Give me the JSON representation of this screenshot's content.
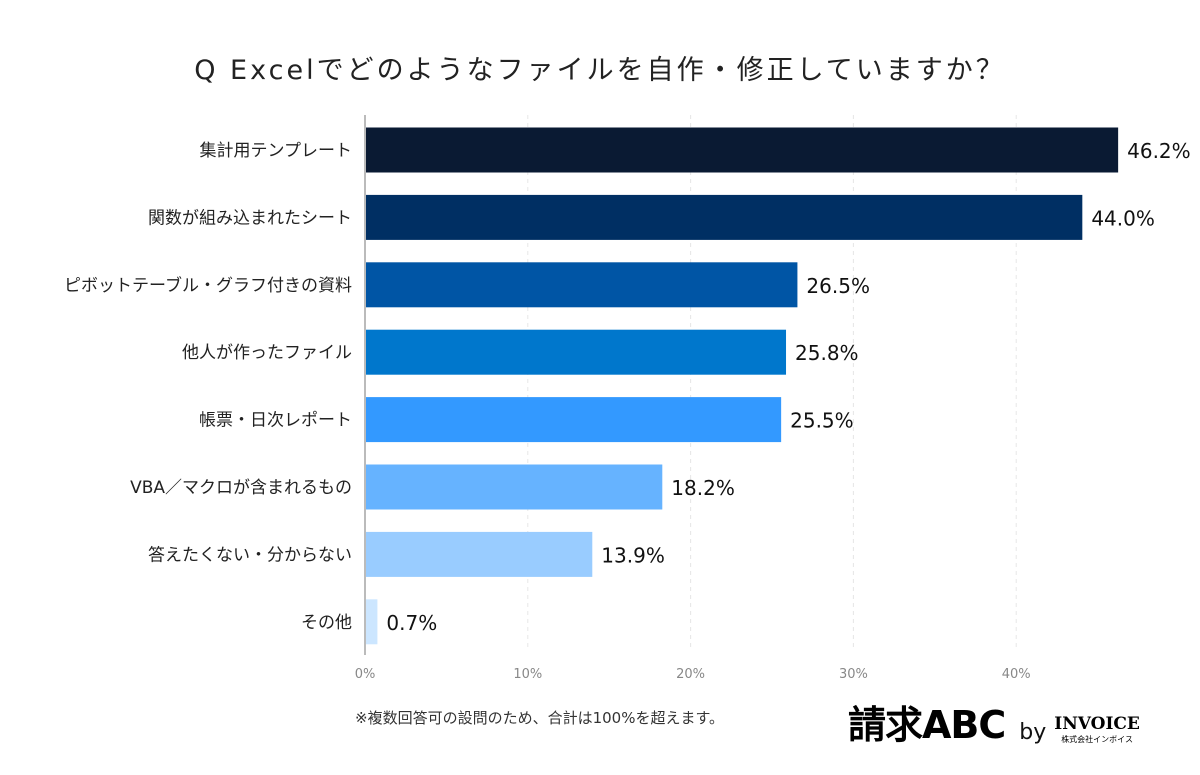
{
  "title": "Q Excelでどのようなファイルを自作・修正していますか？",
  "note": "※複数回答可の設問のため、合計は100%を超えます。",
  "logo": {
    "main": "請求ABC",
    "by": "by",
    "brand": "INVOICE",
    "company": "株式会社インボイス"
  },
  "chart_data": {
    "type": "bar",
    "orientation": "horizontal",
    "title": "Q Excelでどのようなファイルを自作・修正していますか？",
    "categories": [
      "集計用テンプレート",
      "関数が組み込まれたシート",
      "ピボットテーブル・グラフ付きの資料",
      "他人が作ったファイル",
      "帳票・日次レポート",
      "VBA／マクロが含まれるもの",
      "答えたくない・分からない",
      "その他"
    ],
    "values": [
      46.2,
      44.0,
      26.5,
      25.8,
      25.5,
      18.2,
      13.9,
      0.7
    ],
    "data_labels": [
      "46.2%",
      "44.0%",
      "26.5%",
      "25.8%",
      "25.5%",
      "18.2%",
      "13.9%",
      "0.7%"
    ],
    "colors": [
      "#0a1a33",
      "#002f63",
      "#0055a5",
      "#0077cc",
      "#3399ff",
      "#66b3ff",
      "#99ccff",
      "#cce6ff"
    ],
    "xlim": [
      0,
      46.2
    ],
    "xticks": [
      "0%",
      "10%",
      "20%",
      "30%",
      "40%"
    ],
    "grid": true,
    "legend": "none"
  }
}
